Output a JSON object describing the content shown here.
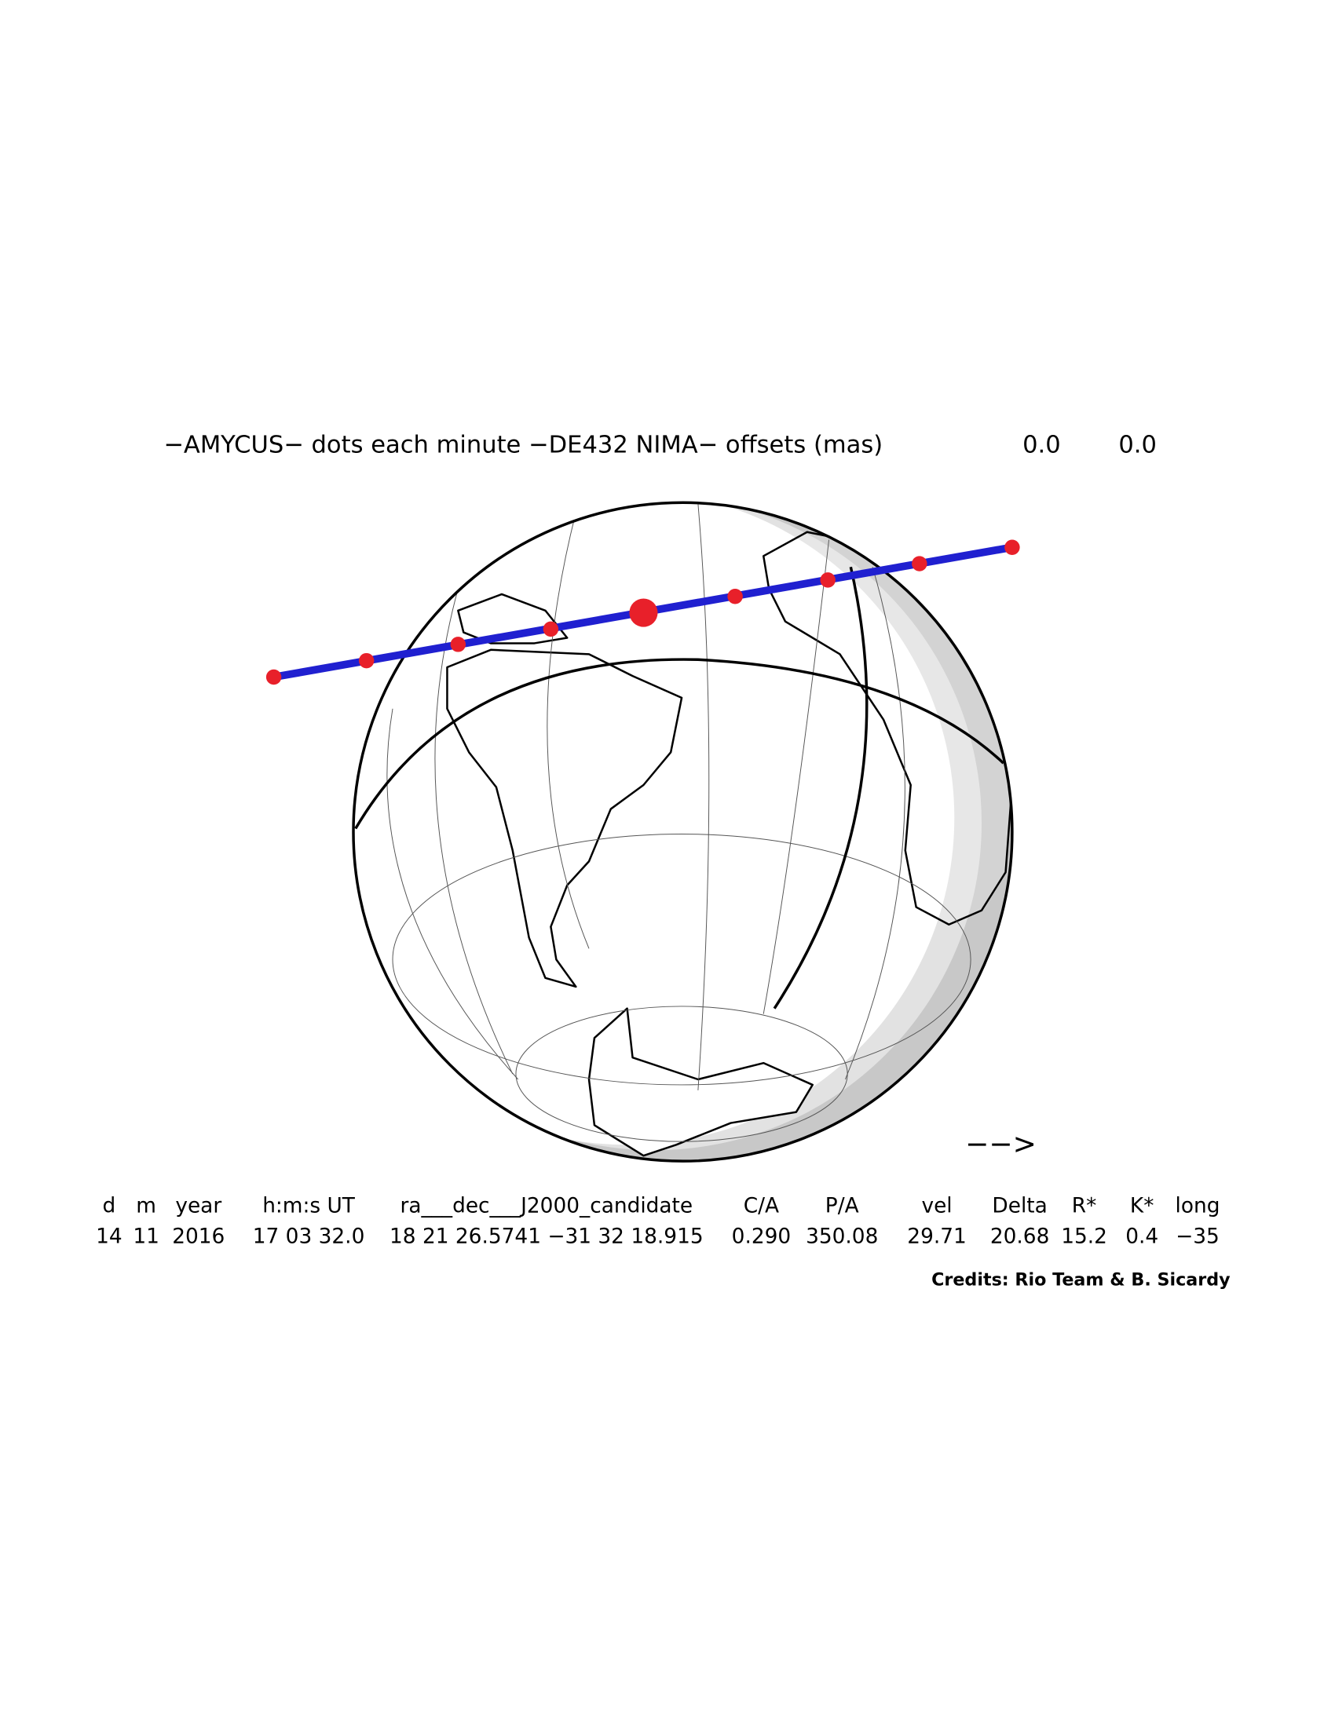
{
  "header": {
    "title": "−AMYCUS− dots each minute −DE432 NIMA− offsets (mas)",
    "offsets": [
      "0.0",
      "0.0"
    ]
  },
  "arrow": "−−>",
  "table": {
    "columns": [
      "d",
      "m",
      "year",
      "h:m:s UT",
      "ra___dec___J2000_candidate",
      "C/A",
      "P/A",
      "vel",
      "Delta",
      "R*",
      "K*",
      "long"
    ],
    "rows": [
      [
        "14",
        "11",
        "2016",
        "17 03 32.0",
        "18 21 26.5741 −31 32 18.915",
        "0.290",
        "350.08",
        "29.71",
        "20.68",
        "15.2",
        "0.4",
        "−35"
      ]
    ]
  },
  "credits": "Credits: Rio Team & B. Sicardy"
}
